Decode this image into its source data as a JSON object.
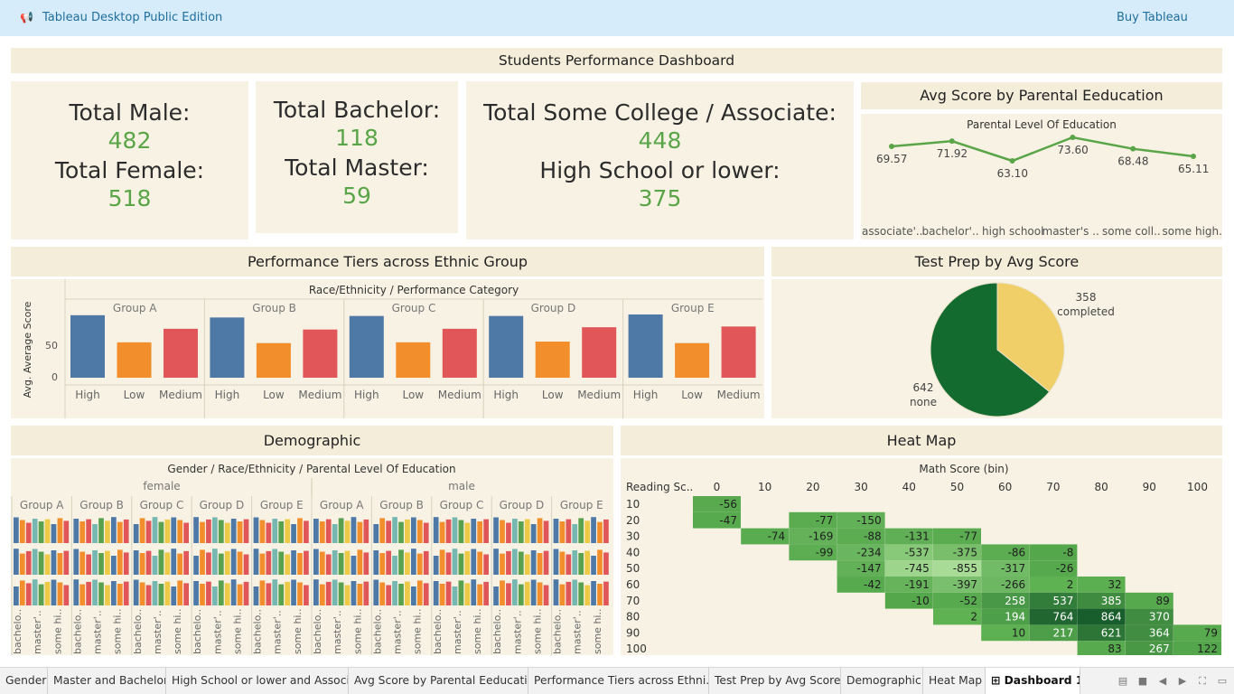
{
  "topbar": {
    "title": "Tableau Desktop Public Edition",
    "buy": "Buy Tableau"
  },
  "dashboard": {
    "title": "Students Performance Dashboard"
  },
  "kpi1": {
    "male_label": "Total Male:",
    "male_value": "482",
    "female_label": "Total Female:",
    "female_value": "518"
  },
  "kpi2": {
    "bachelor_label": "Total Bachelor:",
    "bachelor_value": "118",
    "master_label": "Total Master:",
    "master_value": "59"
  },
  "kpi3": {
    "college_label": "Total Some College / Associate:",
    "college_value": "448",
    "hs_label": "High School or lower:",
    "hs_value": "375"
  },
  "parental": {
    "title": "Avg Score by Parental Eeducation",
    "header": "Parental Level Of Education",
    "chart_data": {
      "type": "line",
      "categories": [
        "associate'..",
        "bachelor'..",
        "high school",
        "master's ..",
        "some coll..",
        "some high.."
      ],
      "values": [
        69.57,
        71.92,
        63.1,
        73.6,
        68.48,
        65.11
      ],
      "labels": [
        "69.57",
        "71.92",
        "63.10",
        "73.60",
        "68.48",
        "65.11"
      ],
      "color": "#5aa548"
    }
  },
  "ethnic": {
    "title": "Performance Tiers across Ethnic Group",
    "header": "Race/Ethnicity  /  Performance Category",
    "ylabel": "Avg. Average Score",
    "yticks": [
      "50",
      "0"
    ],
    "chart_data": {
      "type": "bar",
      "groups": [
        "Group A",
        "Group B",
        "Group C",
        "Group D",
        "Group E"
      ],
      "categories": [
        "High",
        "Low",
        "Medium"
      ],
      "colors": [
        "#4e79a7",
        "#f28e2b",
        "#e15759"
      ],
      "series": [
        {
          "group": "Group A",
          "values": [
            83,
            47,
            65
          ]
        },
        {
          "group": "Group B",
          "values": [
            80,
            46,
            64
          ]
        },
        {
          "group": "Group C",
          "values": [
            82,
            47,
            65
          ]
        },
        {
          "group": "Group D",
          "values": [
            82,
            48,
            67
          ]
        },
        {
          "group": "Group E",
          "values": [
            84,
            46,
            68
          ]
        }
      ],
      "ylim": [
        0,
        90
      ]
    }
  },
  "testprep": {
    "title": "Test Prep by Avg Score",
    "chart_data": {
      "type": "pie",
      "slices": [
        {
          "label": "completed",
          "value": 358,
          "color": "#f0cf69"
        },
        {
          "label": "none",
          "value": 642,
          "color": "#136b30"
        }
      ]
    }
  },
  "demographic": {
    "title": "Demographic",
    "header": "Gender  /  Race/Ethnicity  /  Parental Level Of Education",
    "genders": [
      "female",
      "male"
    ],
    "groups": [
      "Group A",
      "Group B",
      "Group C",
      "Group D",
      "Group E"
    ],
    "xlabels": [
      "bachelo..",
      "master'..",
      "some hi.."
    ],
    "colors": [
      "#4e79a7",
      "#f28e2b",
      "#e15759",
      "#76b7b2",
      "#59a14f",
      "#edc948"
    ]
  },
  "heatmap": {
    "title": "Heat Map",
    "col_header": "Math Score (bin)",
    "row_header": "Reading Sc..",
    "chart_data": {
      "type": "heatmap",
      "x": [
        "0",
        "10",
        "20",
        "30",
        "40",
        "50",
        "60",
        "70",
        "80",
        "90",
        "100"
      ],
      "y": [
        "10",
        "20",
        "30",
        "40",
        "50",
        "60",
        "70",
        "80",
        "90",
        "100"
      ],
      "cells": [
        {
          "r": "10",
          "c": "0",
          "v": -56
        },
        {
          "r": "20",
          "c": "0",
          "v": -47
        },
        {
          "r": "20",
          "c": "20",
          "v": -77
        },
        {
          "r": "20",
          "c": "30",
          "v": -150
        },
        {
          "r": "30",
          "c": "10",
          "v": -74
        },
        {
          "r": "30",
          "c": "20",
          "v": -169
        },
        {
          "r": "30",
          "c": "30",
          "v": -88
        },
        {
          "r": "30",
          "c": "40",
          "v": -131
        },
        {
          "r": "30",
          "c": "50",
          "v": -77
        },
        {
          "r": "40",
          "c": "20",
          "v": -99
        },
        {
          "r": "40",
          "c": "30",
          "v": -234
        },
        {
          "r": "40",
          "c": "40",
          "v": -537
        },
        {
          "r": "40",
          "c": "50",
          "v": -375
        },
        {
          "r": "40",
          "c": "60",
          "v": -86
        },
        {
          "r": "40",
          "c": "70",
          "v": -8
        },
        {
          "r": "50",
          "c": "30",
          "v": -147
        },
        {
          "r": "50",
          "c": "40",
          "v": -745
        },
        {
          "r": "50",
          "c": "50",
          "v": -855
        },
        {
          "r": "50",
          "c": "60",
          "v": -317
        },
        {
          "r": "50",
          "c": "70",
          "v": -26
        },
        {
          "r": "60",
          "c": "30",
          "v": -42
        },
        {
          "r": "60",
          "c": "40",
          "v": -191
        },
        {
          "r": "60",
          "c": "50",
          "v": -397
        },
        {
          "r": "60",
          "c": "60",
          "v": -266
        },
        {
          "r": "60",
          "c": "70",
          "v": 2
        },
        {
          "r": "60",
          "c": "80",
          "v": 32
        },
        {
          "r": "70",
          "c": "40",
          "v": -10
        },
        {
          "r": "70",
          "c": "50",
          "v": -52
        },
        {
          "r": "70",
          "c": "60",
          "v": 258
        },
        {
          "r": "70",
          "c": "70",
          "v": 537
        },
        {
          "r": "70",
          "c": "80",
          "v": 385
        },
        {
          "r": "70",
          "c": "90",
          "v": 89
        },
        {
          "r": "80",
          "c": "50",
          "v": 2
        },
        {
          "r": "80",
          "c": "60",
          "v": 194
        },
        {
          "r": "80",
          "c": "70",
          "v": 764
        },
        {
          "r": "80",
          "c": "80",
          "v": 864
        },
        {
          "r": "80",
          "c": "90",
          "v": 370
        },
        {
          "r": "90",
          "c": "60",
          "v": 10
        },
        {
          "r": "90",
          "c": "70",
          "v": 217
        },
        {
          "r": "90",
          "c": "80",
          "v": 621
        },
        {
          "r": "90",
          "c": "90",
          "v": 364
        },
        {
          "r": "90",
          "c": "100",
          "v": 79
        },
        {
          "r": "100",
          "c": "80",
          "v": 83
        },
        {
          "r": "100",
          "c": "90",
          "v": 267
        },
        {
          "r": "100",
          "c": "100",
          "v": 122
        }
      ]
    }
  },
  "tabs": [
    {
      "label": "Gender"
    },
    {
      "label": "Master and Bachelor"
    },
    {
      "label": "High School or lower and Associte"
    },
    {
      "label": "Avg Score by Parental Eeducation"
    },
    {
      "label": "Performance Tiers across Ethni..."
    },
    {
      "label": "Test Prep by Avg Score"
    },
    {
      "label": "Demographic"
    },
    {
      "label": "Heat Map"
    },
    {
      "label": "Dashboard 1"
    }
  ]
}
